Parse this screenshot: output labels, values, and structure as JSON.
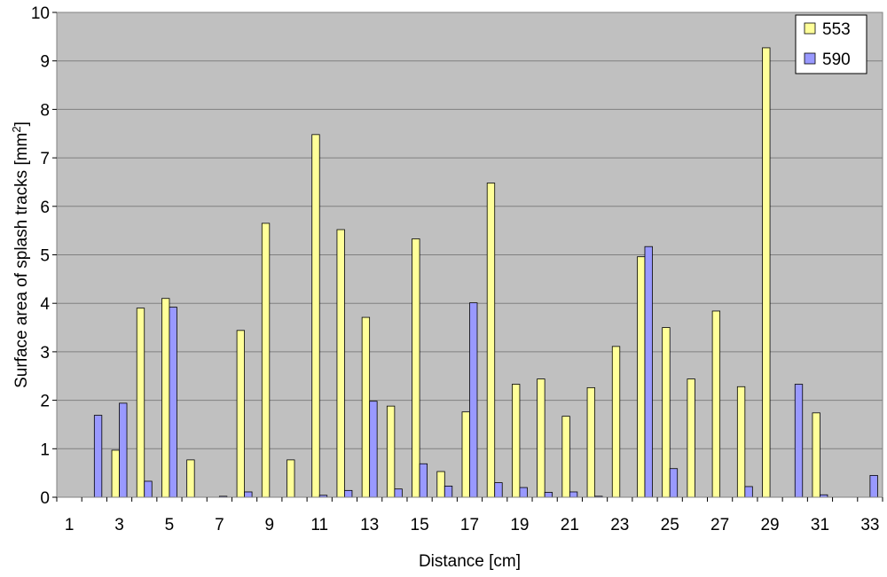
{
  "chart_data": {
    "type": "bar",
    "xlabel": "Distance [cm]",
    "ylabel_main": "Surface area of splash tracks [mm",
    "ylabel_sup": "2",
    "ylabel_end": "]",
    "categories": [
      1,
      2,
      3,
      4,
      5,
      6,
      7,
      8,
      9,
      10,
      11,
      12,
      13,
      14,
      15,
      16,
      17,
      18,
      19,
      20,
      21,
      22,
      23,
      24,
      25,
      26,
      27,
      28,
      29,
      30,
      31,
      32,
      33
    ],
    "x_tick_labels": [
      "1",
      "3",
      "5",
      "7",
      "9",
      "11",
      "13",
      "15",
      "17",
      "19",
      "21",
      "23",
      "25",
      "27",
      "29",
      "31",
      "33"
    ],
    "y_tick_labels": [
      "0",
      "1",
      "2",
      "3",
      "4",
      "5",
      "6",
      "7",
      "8",
      "9",
      "10"
    ],
    "ylim": [
      0,
      10
    ],
    "grid": true,
    "legend_position": "top-right",
    "series": [
      {
        "name": "553",
        "color": "#ffff99",
        "values": [
          0,
          0,
          0.97,
          3.9,
          4.1,
          0.77,
          0,
          3.44,
          5.65,
          0.77,
          7.48,
          5.52,
          3.71,
          1.88,
          5.33,
          0.53,
          1.76,
          6.48,
          2.33,
          2.44,
          1.67,
          2.26,
          3.11,
          4.96,
          3.5,
          2.44,
          3.84,
          2.28,
          9.27,
          0,
          1.74,
          0,
          0
        ]
      },
      {
        "name": "590",
        "color": "#9999ff",
        "values": [
          0,
          1.69,
          1.94,
          0.33,
          3.92,
          0,
          0.02,
          0.11,
          0,
          0,
          0.04,
          0.14,
          1.98,
          0.17,
          0.69,
          0.23,
          4.01,
          0.3,
          0.2,
          0.1,
          0.11,
          0.02,
          0,
          5.17,
          0.59,
          0,
          0,
          0.22,
          0,
          2.33,
          0.05,
          0,
          0.45
        ]
      }
    ],
    "plot_bg": "#c0c0c0",
    "gridline_color": "#808080"
  }
}
